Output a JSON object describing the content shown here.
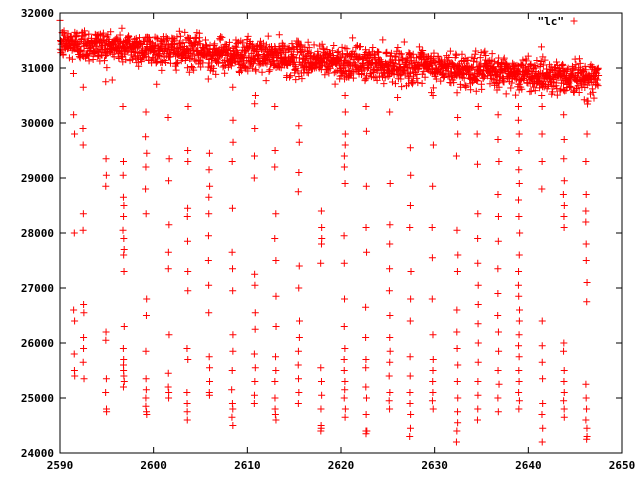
{
  "chart_data": {
    "type": "scatter",
    "title": "",
    "xlabel": "",
    "ylabel": "",
    "xlim": [
      2590,
      2650
    ],
    "ylim": [
      24000,
      32000
    ],
    "x_ticks": [
      2590,
      2600,
      2610,
      2620,
      2630,
      2640,
      2650
    ],
    "y_ticks": [
      24000,
      25000,
      26000,
      27000,
      28000,
      29000,
      30000,
      31000,
      32000
    ],
    "x_tick_labels": [
      "2590",
      "2600",
      "2610",
      "2620",
      "2630",
      "2640",
      "2650"
    ],
    "y_tick_labels": [
      "24000",
      "25000",
      "26000",
      "27000",
      "28000",
      "29000",
      "30000",
      "31000",
      "32000"
    ],
    "grid": false,
    "legend_position": "top-right",
    "marker": "plus",
    "series": [
      {
        "name": "\"lc\"",
        "color": "#ff0000",
        "baseline": {
          "x_start": 2590,
          "x_end": 2647.5,
          "y_start": 31450,
          "y_end": 30800,
          "scatter": 150,
          "count": 2000
        },
        "dip_columns": [
          {
            "x": 2591.5,
            "values": [
              30900,
              30150,
              29800,
              28000,
              26600,
              26400,
              25800,
              25500,
              25400
            ]
          },
          {
            "x": 2592.5,
            "values": [
              30650,
              29900,
              29600,
              28350,
              28050,
              26700,
              26550,
              26100,
              25900,
              25650,
              25350
            ]
          },
          {
            "x": 2594.9,
            "values": [
              30750,
              29350,
              29050,
              28850,
              26200,
              26050,
              25350,
              25100,
              24800,
              24750
            ]
          },
          {
            "x": 2596.8,
            "values": [
              30300,
              29300,
              29050,
              28650,
              28500,
              28300,
              28050,
              27900,
              27700,
              27600,
              27300,
              26300,
              25900,
              25700,
              25600,
              25500,
              25400,
              25300,
              25200
            ]
          },
          {
            "x": 2599.2,
            "values": [
              30200,
              29750,
              29450,
              29200,
              28800,
              28350,
              26800,
              26500,
              25850,
              25350,
              25150,
              25000,
              24850,
              24750,
              24700
            ]
          },
          {
            "x": 2601.6,
            "values": [
              30100,
              29350,
              28950,
              28150,
              27650,
              27350,
              26150,
              25450,
              25200,
              25100,
              25000
            ]
          },
          {
            "x": 2603.6,
            "values": [
              30300,
              29500,
              29300,
              28450,
              28300,
              27850,
              27300,
              26950,
              25900,
              25700,
              25100,
              24900,
              24750,
              24600
            ]
          },
          {
            "x": 2605.9,
            "values": [
              30800,
              29450,
              29150,
              28850,
              28650,
              28350,
              27950,
              27500,
              27050,
              26550,
              25750,
              25550,
              25300,
              25100,
              25050
            ]
          },
          {
            "x": 2608.4,
            "values": [
              30650,
              30050,
              29650,
              29300,
              28450,
              27650,
              27350,
              26950,
              26150,
              25850,
              25500,
              25150,
              24900,
              24800,
              24650,
              24500
            ]
          },
          {
            "x": 2610.8,
            "values": [
              30500,
              30350,
              29900,
              29400,
              29000,
              27250,
              27050,
              26550,
              26250,
              25800,
              25550,
              25300,
              25050,
              24900
            ]
          },
          {
            "x": 2613.0,
            "values": [
              30300,
              29500,
              29200,
              28350,
              27900,
              27500,
              26850,
              26300,
              25750,
              25500,
              25300,
              25000,
              24800,
              24700,
              24600
            ]
          },
          {
            "x": 2615.5,
            "values": [
              29950,
              29650,
              29100,
              28750,
              27400,
              27000,
              26400,
              26100,
              25850,
              25600,
              25350,
              25100,
              24900
            ]
          },
          {
            "x": 2617.9,
            "values": [
              28400,
              28100,
              27900,
              27800,
              27450,
              25550,
              25300,
              25050,
              24800,
              24500,
              24450,
              24400
            ]
          },
          {
            "x": 2620.4,
            "values": [
              30800,
              30500,
              30200,
              29800,
              29600,
              29400,
              29200,
              28900,
              27950,
              27450,
              26800,
              26300,
              25900,
              25700,
              25500,
              25300,
              25150,
              25000,
              24800,
              24650
            ]
          },
          {
            "x": 2622.7,
            "values": [
              30300,
              29850,
              28850,
              28100,
              27650,
              26650,
              26100,
              25700,
              25550,
              25200,
              25000,
              24700,
              24400,
              24350,
              24400
            ]
          },
          {
            "x": 2625.2,
            "values": [
              30200,
              28900,
              28150,
              27800,
              27350,
              26950,
              26500,
              26100,
              25850,
              25650,
              25400,
              25100,
              24950,
              24800
            ]
          },
          {
            "x": 2627.4,
            "values": [
              29550,
              29050,
              28500,
              28100,
              27300,
              26800,
              26400,
              25750,
              25400,
              25100,
              24900,
              24700,
              24450,
              24300
            ]
          },
          {
            "x": 2629.8,
            "values": [
              30500,
              29600,
              28850,
              28100,
              27550,
              26800,
              26150,
              25700,
              25500,
              25300,
              25100,
              24950,
              24800
            ]
          },
          {
            "x": 2632.4,
            "values": [
              30550,
              30100,
              29800,
              29400,
              28050,
              27600,
              27300,
              26600,
              26200,
              25900,
              25600,
              25300,
              25000,
              24750,
              24550,
              24400,
              24200
            ]
          },
          {
            "x": 2634.6,
            "values": [
              30900,
              30300,
              29800,
              29250,
              28350,
              27900,
              27450,
              27050,
              26700,
              26350,
              26000,
              25650,
              25300,
              25050,
              24800,
              24600
            ]
          },
          {
            "x": 2636.8,
            "values": [
              30650,
              30150,
              29700,
              29300,
              28700,
              28300,
              27850,
              27350,
              26900,
              26500,
              26200,
              25850,
              25500,
              25250,
              25000,
              24750
            ]
          },
          {
            "x": 2639.0,
            "values": [
              30600,
              30300,
              30050,
              29800,
              29500,
              29150,
              28900,
              28600,
              28300,
              28000,
              27600,
              27300,
              27050,
              26850,
              26600,
              26400,
              26150,
              25950,
              25750,
              25500,
              25300,
              25100,
              24950,
              24800
            ]
          },
          {
            "x": 2641.5,
            "values": [
              30700,
              30300,
              29800,
              29300,
              28800,
              26400,
              25950,
              25650,
              25350,
              24900,
              24700,
              24450,
              24200
            ]
          },
          {
            "x": 2643.8,
            "values": [
              30600,
              30150,
              29700,
              29350,
              28950,
              28700,
              28500,
              28300,
              28100,
              26000,
              25850,
              25500,
              25300,
              25100,
              24950,
              24800,
              24650
            ]
          },
          {
            "x": 2646.2,
            "values": [
              30400,
              29800,
              29300,
              28700,
              28400,
              28200,
              27800,
              27500,
              27100,
              26750,
              25250,
              25000,
              24800,
              24600,
              24450,
              24300,
              24250
            ]
          }
        ]
      }
    ]
  }
}
